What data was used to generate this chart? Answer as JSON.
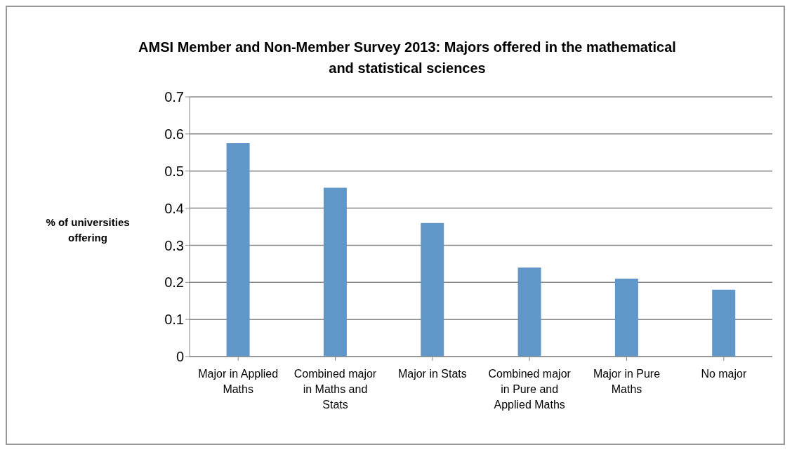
{
  "chart_data": {
    "type": "bar",
    "title": "AMSI Member and Non-Member Survey 2013: Majors offered in the mathematical and statistical sciences",
    "ylabel": "% of universities offering",
    "categories": [
      "Major in Applied Maths",
      "Combined major in Maths and Stats",
      "Major in Stats",
      "Combined major in Pure and Applied Maths",
      "Major in Pure Maths",
      "No major"
    ],
    "values": [
      0.575,
      0.455,
      0.36,
      0.24,
      0.21,
      0.18
    ],
    "color": "#6196c9",
    "ylim": [
      0,
      0.7
    ],
    "yticks": [
      0,
      0.1,
      0.2,
      0.3,
      0.4,
      0.5,
      0.6,
      0.7
    ],
    "grid": "y"
  }
}
